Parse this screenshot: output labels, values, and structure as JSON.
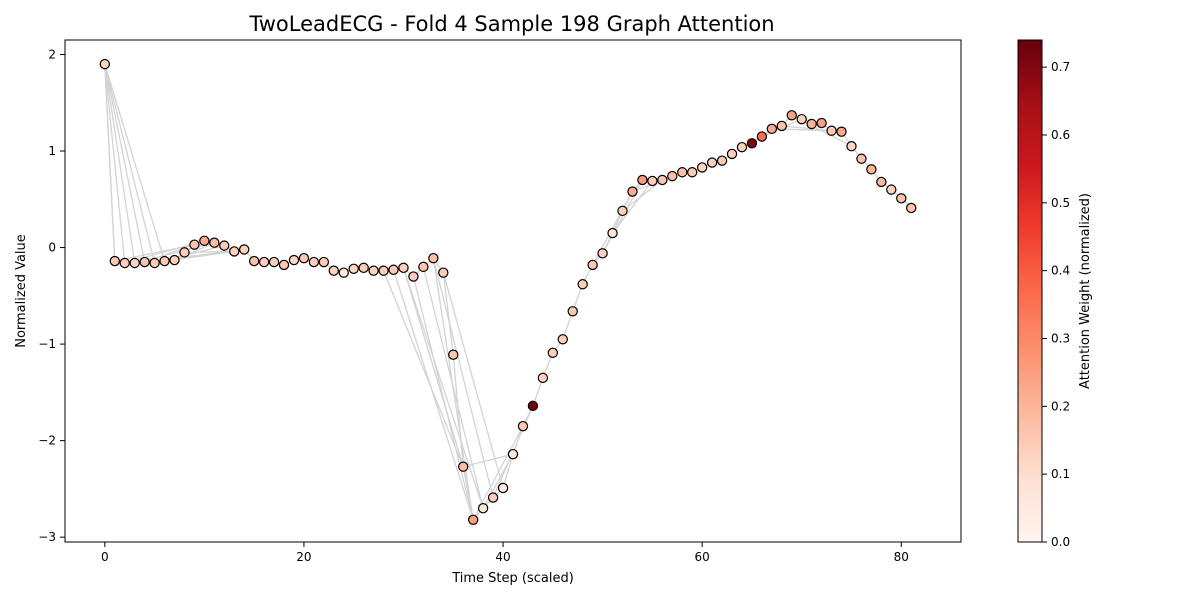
{
  "chart_data": {
    "type": "scatter",
    "title": "TwoLeadECG - Fold 4 Sample 198 Graph Attention",
    "xlabel": "Time Step (scaled)",
    "ylabel": "Normalized Value",
    "xlim": [
      -4,
      86
    ],
    "ylim": [
      -3.05,
      2.15
    ],
    "xticks": [
      0,
      20,
      40,
      60,
      80
    ],
    "yticks": [
      -3,
      -2,
      -1,
      0,
      1,
      2
    ],
    "grid": false,
    "legend": "none",
    "points": [
      {
        "x": 0,
        "y": 1.9,
        "w": 0.12
      },
      {
        "x": 1,
        "y": -0.14,
        "w": 0.15
      },
      {
        "x": 2,
        "y": -0.16,
        "w": 0.14
      },
      {
        "x": 3,
        "y": -0.16,
        "w": 0.12
      },
      {
        "x": 4,
        "y": -0.15,
        "w": 0.16
      },
      {
        "x": 5,
        "y": -0.16,
        "w": 0.14
      },
      {
        "x": 6,
        "y": -0.14,
        "w": 0.15
      },
      {
        "x": 7,
        "y": -0.13,
        "w": 0.13
      },
      {
        "x": 8,
        "y": -0.05,
        "w": 0.14
      },
      {
        "x": 9,
        "y": 0.03,
        "w": 0.16
      },
      {
        "x": 10,
        "y": 0.07,
        "w": 0.22
      },
      {
        "x": 11,
        "y": 0.05,
        "w": 0.18
      },
      {
        "x": 12,
        "y": 0.02,
        "w": 0.15
      },
      {
        "x": 13,
        "y": -0.04,
        "w": 0.13
      },
      {
        "x": 14,
        "y": -0.02,
        "w": 0.14
      },
      {
        "x": 15,
        "y": -0.14,
        "w": 0.17
      },
      {
        "x": 16,
        "y": -0.15,
        "w": 0.14
      },
      {
        "x": 17,
        "y": -0.15,
        "w": 0.13
      },
      {
        "x": 18,
        "y": -0.18,
        "w": 0.16
      },
      {
        "x": 19,
        "y": -0.13,
        "w": 0.12
      },
      {
        "x": 20,
        "y": -0.11,
        "w": 0.15
      },
      {
        "x": 21,
        "y": -0.15,
        "w": 0.14
      },
      {
        "x": 22,
        "y": -0.15,
        "w": 0.15
      },
      {
        "x": 23,
        "y": -0.24,
        "w": 0.13
      },
      {
        "x": 24,
        "y": -0.26,
        "w": 0.05
      },
      {
        "x": 25,
        "y": -0.22,
        "w": 0.12
      },
      {
        "x": 26,
        "y": -0.21,
        "w": 0.14
      },
      {
        "x": 27,
        "y": -0.24,
        "w": 0.13
      },
      {
        "x": 28,
        "y": -0.24,
        "w": 0.14
      },
      {
        "x": 29,
        "y": -0.23,
        "w": 0.15
      },
      {
        "x": 30,
        "y": -0.21,
        "w": 0.13
      },
      {
        "x": 31,
        "y": -0.3,
        "w": 0.14
      },
      {
        "x": 32,
        "y": -0.2,
        "w": 0.16
      },
      {
        "x": 33,
        "y": -0.11,
        "w": 0.17
      },
      {
        "x": 34,
        "y": -0.26,
        "w": 0.14
      },
      {
        "x": 35,
        "y": -1.11,
        "w": 0.15
      },
      {
        "x": 36,
        "y": -2.27,
        "w": 0.18
      },
      {
        "x": 37,
        "y": -2.82,
        "w": 0.25
      },
      {
        "x": 38,
        "y": -2.7,
        "w": 0.06
      },
      {
        "x": 39,
        "y": -2.59,
        "w": 0.14
      },
      {
        "x": 40,
        "y": -2.49,
        "w": 0.05
      },
      {
        "x": 41,
        "y": -2.14,
        "w": 0.06
      },
      {
        "x": 42,
        "y": -1.85,
        "w": 0.15
      },
      {
        "x": 43,
        "y": -1.64,
        "w": 0.72
      },
      {
        "x": 44,
        "y": -1.35,
        "w": 0.13
      },
      {
        "x": 45,
        "y": -1.09,
        "w": 0.14
      },
      {
        "x": 46,
        "y": -0.95,
        "w": 0.14
      },
      {
        "x": 47,
        "y": -0.66,
        "w": 0.15
      },
      {
        "x": 48,
        "y": -0.38,
        "w": 0.14
      },
      {
        "x": 49,
        "y": -0.18,
        "w": 0.15
      },
      {
        "x": 50,
        "y": -0.06,
        "w": 0.13
      },
      {
        "x": 51,
        "y": 0.15,
        "w": 0.08
      },
      {
        "x": 52,
        "y": 0.38,
        "w": 0.14
      },
      {
        "x": 53,
        "y": 0.58,
        "w": 0.22
      },
      {
        "x": 54,
        "y": 0.7,
        "w": 0.26
      },
      {
        "x": 55,
        "y": 0.69,
        "w": 0.14
      },
      {
        "x": 56,
        "y": 0.7,
        "w": 0.16
      },
      {
        "x": 57,
        "y": 0.74,
        "w": 0.18
      },
      {
        "x": 58,
        "y": 0.78,
        "w": 0.17
      },
      {
        "x": 59,
        "y": 0.78,
        "w": 0.14
      },
      {
        "x": 60,
        "y": 0.83,
        "w": 0.12
      },
      {
        "x": 61,
        "y": 0.88,
        "w": 0.13
      },
      {
        "x": 62,
        "y": 0.9,
        "w": 0.15
      },
      {
        "x": 63,
        "y": 0.97,
        "w": 0.14
      },
      {
        "x": 64,
        "y": 1.04,
        "w": 0.13
      },
      {
        "x": 65,
        "y": 1.08,
        "w": 0.7
      },
      {
        "x": 66,
        "y": 1.15,
        "w": 0.35
      },
      {
        "x": 67,
        "y": 1.23,
        "w": 0.22
      },
      {
        "x": 68,
        "y": 1.26,
        "w": 0.17
      },
      {
        "x": 69,
        "y": 1.37,
        "w": 0.24
      },
      {
        "x": 70,
        "y": 1.33,
        "w": 0.13
      },
      {
        "x": 71,
        "y": 1.28,
        "w": 0.2
      },
      {
        "x": 72,
        "y": 1.29,
        "w": 0.25
      },
      {
        "x": 73,
        "y": 1.21,
        "w": 0.15
      },
      {
        "x": 74,
        "y": 1.2,
        "w": 0.23
      },
      {
        "x": 75,
        "y": 1.05,
        "w": 0.12
      },
      {
        "x": 76,
        "y": 0.92,
        "w": 0.17
      },
      {
        "x": 77,
        "y": 0.81,
        "w": 0.2
      },
      {
        "x": 78,
        "y": 0.68,
        "w": 0.19
      },
      {
        "x": 79,
        "y": 0.6,
        "w": 0.13
      },
      {
        "x": 80,
        "y": 0.51,
        "w": 0.16
      },
      {
        "x": 81,
        "y": 0.41,
        "w": 0.16
      }
    ],
    "edges": [
      [
        0,
        1
      ],
      [
        0,
        2
      ],
      [
        0,
        3
      ],
      [
        0,
        4
      ],
      [
        0,
        5
      ],
      [
        0,
        6
      ],
      [
        1,
        9
      ],
      [
        2,
        10
      ],
      [
        3,
        11
      ],
      [
        4,
        10
      ],
      [
        5,
        12
      ],
      [
        6,
        13
      ],
      [
        7,
        11
      ],
      [
        8,
        13
      ],
      [
        4,
        14
      ],
      [
        30,
        36
      ],
      [
        31,
        37
      ],
      [
        32,
        38
      ],
      [
        33,
        39
      ],
      [
        34,
        40
      ],
      [
        29,
        37
      ],
      [
        28,
        36
      ],
      [
        30,
        38
      ],
      [
        33,
        37
      ],
      [
        36,
        41
      ],
      [
        37,
        42
      ],
      [
        38,
        41
      ],
      [
        39,
        43
      ],
      [
        50,
        54
      ],
      [
        51,
        55
      ],
      [
        52,
        56
      ],
      [
        53,
        57
      ],
      [
        49,
        53
      ],
      [
        66,
        70
      ],
      [
        67,
        73
      ],
      [
        68,
        74
      ],
      [
        69,
        75
      ],
      [
        70,
        74
      ]
    ],
    "colorbar": {
      "label": "Attention Weight (normalized)",
      "ticks": [
        0.0,
        0.1,
        0.2,
        0.3,
        0.4,
        0.5,
        0.6,
        0.7
      ],
      "tick_labels": [
        "0.0",
        "0.1",
        "0.2",
        "0.3",
        "0.4",
        "0.5",
        "0.6",
        "0.7"
      ],
      "range": [
        0.0,
        0.74
      ],
      "colormap": "Reds"
    },
    "colors": {
      "edge": "#d3d3d3",
      "marker_edge": "#000000"
    }
  }
}
